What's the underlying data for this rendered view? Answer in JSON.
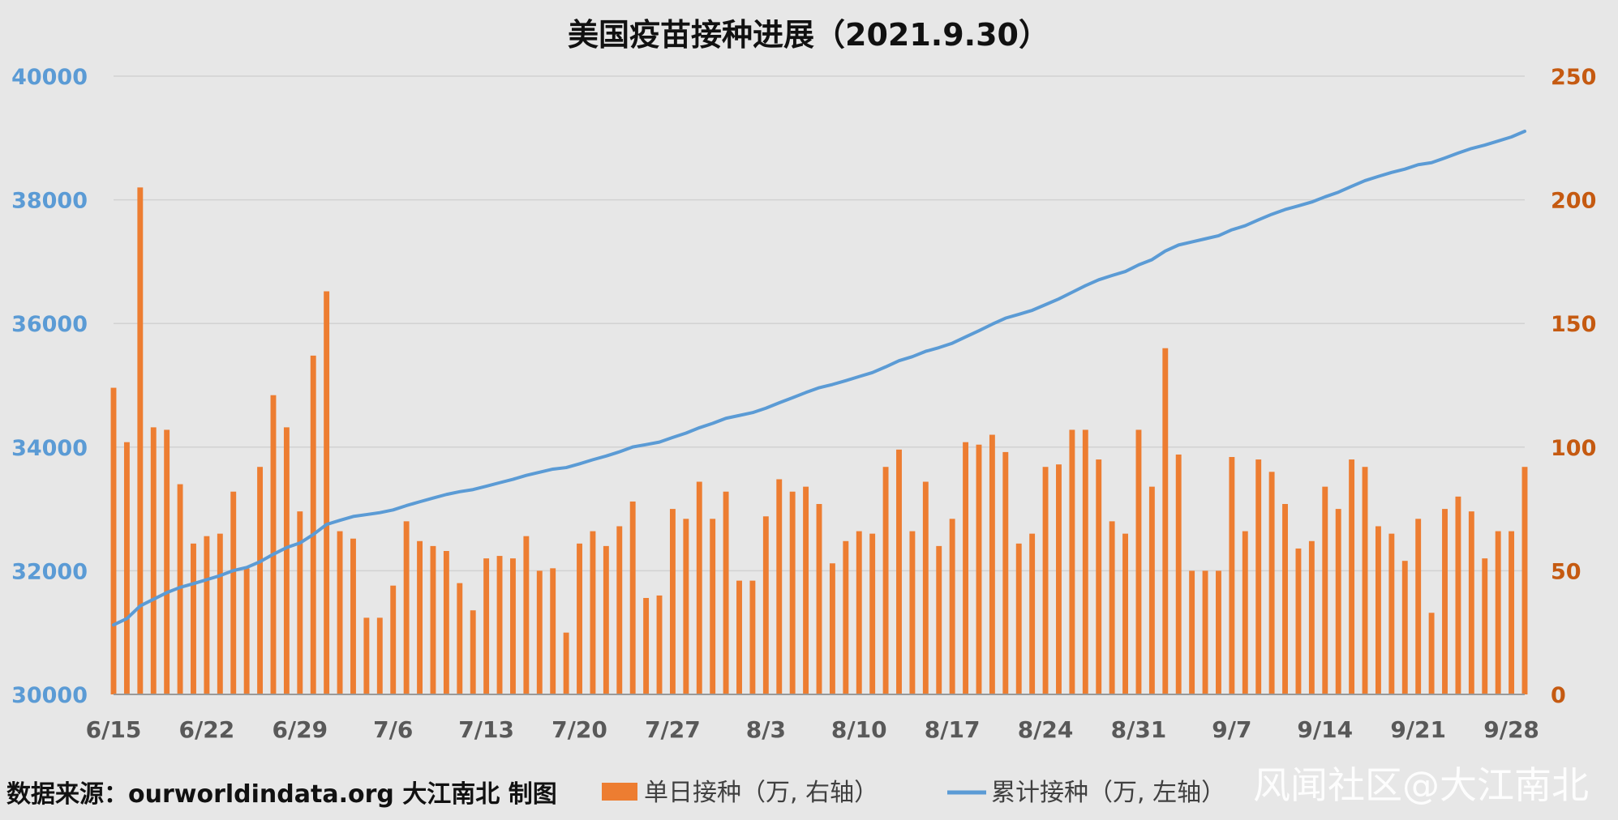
{
  "chart_data": {
    "type": "bar",
    "title": "美国疫苗接种进展（2021.9.30）",
    "xlabel": "",
    "ylabel_left": "",
    "ylabel_right": "",
    "x_tick_labels": [
      "6/15",
      "6/22",
      "6/29",
      "7/6",
      "7/13",
      "7/20",
      "7/27",
      "8/3",
      "8/10",
      "8/17",
      "8/24",
      "8/31",
      "9/7",
      "9/14",
      "9/21",
      "9/28"
    ],
    "left_axis": {
      "min": 30000,
      "max": 40000,
      "ticks": [
        "30000",
        "32000",
        "34000",
        "36000",
        "38000",
        "40000"
      ],
      "color": "#5b9bd5"
    },
    "right_axis": {
      "min": 0,
      "max": 250,
      "ticks": [
        "0",
        "50",
        "100",
        "150",
        "200",
        "250"
      ],
      "color": "#c55a11"
    },
    "grid": true,
    "legend_position": "bottom",
    "series": [
      {
        "name": "单日接种（万, 右轴）",
        "type": "bar",
        "axis": "right",
        "color": "#ed7d31",
        "values": [
          124,
          102,
          205,
          108,
          107,
          85,
          61,
          64,
          65,
          82,
          51,
          92,
          121,
          108,
          74,
          137,
          163,
          66,
          63,
          31,
          31,
          44,
          70,
          62,
          60,
          58,
          45,
          34,
          55,
          56,
          55,
          64,
          50,
          51,
          25,
          61,
          66,
          60,
          68,
          78,
          39,
          40,
          75,
          71,
          86,
          71,
          82,
          46,
          46,
          72,
          87,
          82,
          84,
          77,
          53,
          62,
          66,
          65,
          92,
          99,
          66,
          86,
          60,
          71,
          102,
          101,
          105,
          98,
          61,
          65,
          92,
          93,
          107,
          107,
          95,
          70,
          65,
          107,
          84,
          140,
          97,
          50,
          50,
          50,
          96,
          66,
          95,
          90,
          77,
          59,
          62,
          84,
          75,
          95,
          92,
          68,
          65,
          54,
          71,
          33,
          75,
          80,
          74,
          55,
          66,
          66,
          92
        ]
      },
      {
        "name": "累计接种（万, 左轴）",
        "type": "line",
        "axis": "left",
        "color": "#5b9bd5",
        "values": [
          31124,
          31226,
          31431,
          31539,
          31646,
          31731,
          31792,
          31856,
          31921,
          32003,
          32054,
          32146,
          32267,
          32375,
          32449,
          32586,
          32749,
          32815,
          32878,
          32909,
          32940,
          32984,
          33054,
          33116,
          33176,
          33234,
          33279,
          33313,
          33368,
          33424,
          33479,
          33543,
          33593,
          33644,
          33669,
          33730,
          33796,
          33856,
          33924,
          34002,
          34041,
          34081,
          34156,
          34227,
          34313,
          34384,
          34466,
          34512,
          34558,
          34630,
          34717,
          34799,
          34883,
          34960,
          35013,
          35075,
          35141,
          35206,
          35298,
          35397,
          35463,
          35549,
          35609,
          35680,
          35782,
          35883,
          35988,
          36086,
          36147,
          36212,
          36304,
          36397,
          36504,
          36611,
          36706,
          36776,
          36841,
          36948,
          37032,
          37172,
          37269,
          37319,
          37369,
          37419,
          37515,
          37581,
          37676,
          37766,
          37843,
          37902,
          37964,
          38048,
          38123,
          38218,
          38310,
          38378,
          38443,
          38497,
          38568,
          38601,
          38676,
          38756,
          38830,
          38885,
          38951,
          39017,
          39109
        ]
      }
    ]
  },
  "footer": {
    "source": "数据来源：ourworldindata.org 大江南北 制图",
    "watermark": "风闻社区@大江南北"
  }
}
